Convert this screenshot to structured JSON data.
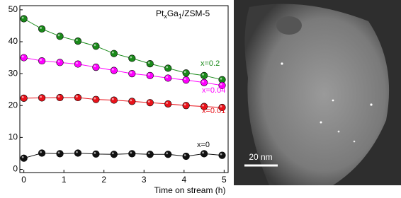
{
  "chart_data": {
    "type": "line",
    "title_parts": [
      "Pt",
      "x",
      "Ga",
      "1",
      "/ZSM-5"
    ],
    "x_label": "Time on stream (h)",
    "x": [
      0,
      0.45,
      0.9,
      1.35,
      1.8,
      2.25,
      2.7,
      3.15,
      3.6,
      4.05,
      4.5,
      4.95
    ],
    "series": [
      {
        "name": "x=0.2",
        "color": "#1a8a1a",
        "values": [
          47.2,
          44,
          41.7,
          40.2,
          38.6,
          36.3,
          34.8,
          33.1,
          31.7,
          30.2,
          29.4,
          28.1
        ]
      },
      {
        "name": "x=0.04",
        "color": "#ff00ff",
        "values": [
          35,
          34,
          33.5,
          33,
          32,
          31,
          30,
          29.4,
          28.6,
          28,
          27.2,
          26.3
        ]
      },
      {
        "name": "x=0.01",
        "color": "#e8121a",
        "values": [
          22.3,
          22.4,
          22.5,
          22.5,
          21.9,
          21.7,
          21.3,
          20.9,
          20.5,
          20,
          19.7,
          19.4
        ]
      },
      {
        "name": "x=0",
        "color": "#111111",
        "values": [
          3.5,
          5.1,
          4.9,
          5.1,
          4.8,
          4.7,
          4.9,
          4.7,
          4.7,
          4.1,
          4.9,
          4.4
        ]
      }
    ],
    "xlim": [
      -0.1,
      5.1
    ],
    "xticks": [
      0,
      1,
      2,
      3,
      4,
      5
    ],
    "ylim": [
      -1,
      51.3
    ],
    "yticks": [
      0,
      10,
      20,
      30,
      40,
      50
    ],
    "scale_bar_label": "20 nm"
  }
}
